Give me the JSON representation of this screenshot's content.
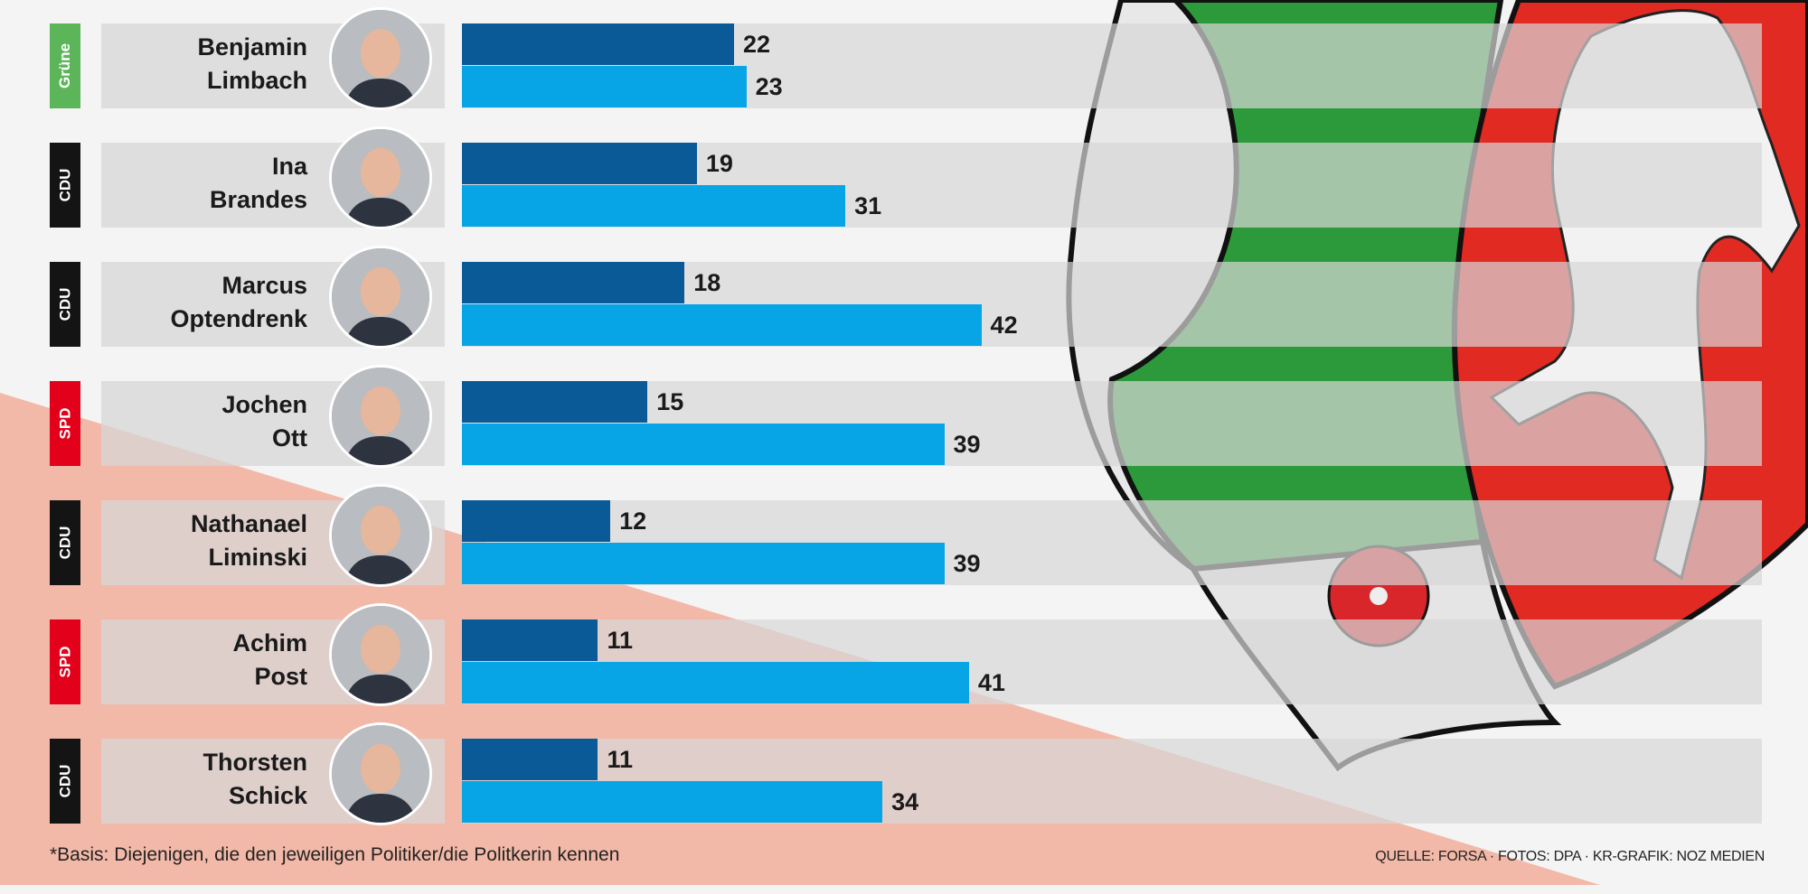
{
  "chart_data": {
    "type": "bar",
    "orientation": "horizontal",
    "categories": [
      "Benjamin Limbach",
      "Ina Brandes",
      "Marcus Optendrenk",
      "Jochen Ott",
      "Nathanael Liminski",
      "Achim Post",
      "Thorsten Schick"
    ],
    "rows": [
      {
        "first": "Benjamin",
        "last": "Limbach",
        "party": "Grüne"
      },
      {
        "first": "Ina",
        "last": "Brandes",
        "party": "CDU"
      },
      {
        "first": "Marcus",
        "last": "Optendrenk",
        "party": "CDU"
      },
      {
        "first": "Jochen",
        "last": "Ott",
        "party": "SPD"
      },
      {
        "first": "Nathanael",
        "last": "Liminski",
        "party": "CDU"
      },
      {
        "first": "Achim",
        "last": "Post",
        "party": "SPD"
      },
      {
        "first": "Thorsten",
        "last": "Schick",
        "party": "CDU"
      }
    ],
    "series": [
      {
        "values": [
          22,
          19,
          18,
          15,
          12,
          11,
          11
        ],
        "color": "#0b5a98"
      },
      {
        "values": [
          23,
          31,
          42,
          39,
          39,
          41,
          34
        ],
        "color": "#07a5e6"
      }
    ],
    "party_colors": {
      "Grüne": "#5db55a",
      "CDU": "#141414",
      "SPD": "#e2001a"
    },
    "xlim": [
      0,
      105
    ],
    "grid": false
  },
  "footnote": "*Basis: Diejenigen, die den jeweiligen Politiker/die Politkerin kennen",
  "source": "QUELLE: FORSA · FOTOS: DPA · KR-GRAFIK: NOZ MEDIEN"
}
